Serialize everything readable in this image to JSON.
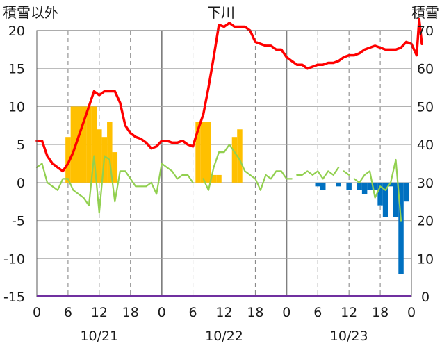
{
  "chart_data": {
    "type": "bar",
    "title": "下川",
    "ylabel_left": "積雪以外",
    "ylabel_right": "積雪",
    "ylim_left": [
      -15,
      20
    ],
    "ylim_right": [
      0,
      70
    ],
    "yticks_left": [
      "-15",
      "-10",
      "-5",
      "0",
      "5",
      "10",
      "15",
      "20"
    ],
    "yticks_right": [
      "0",
      "10",
      "20",
      "30",
      "40",
      "50",
      "60",
      "70"
    ],
    "xlim_hours": [
      0,
      72
    ],
    "xticks": [
      "0",
      "6",
      "12",
      "18",
      "0",
      "6",
      "12",
      "18",
      "0",
      "6",
      "12",
      "18",
      "0"
    ],
    "dates": [
      "10/21",
      "10/22",
      "10/23"
    ],
    "grid": true,
    "colors": {
      "snow_depth": "#ff0000",
      "snowfall": "#ffc000",
      "snowmelt": "#0070c0",
      "temperature": "#92d050",
      "baseline": "#7030a0",
      "grid_major": "#7f7f7f",
      "grid_minor": "#808080"
    },
    "series": [
      {
        "type": "bar",
        "color": "#ffc000",
        "values": [
          [
            6,
            6
          ],
          [
            7,
            10
          ],
          [
            8,
            10
          ],
          [
            9,
            10
          ],
          [
            10,
            10
          ],
          [
            11,
            10
          ],
          [
            12,
            7
          ],
          [
            13,
            6
          ],
          [
            14,
            8
          ],
          [
            15,
            4
          ],
          [
            31,
            8
          ],
          [
            32,
            8
          ],
          [
            33,
            8
          ],
          [
            34,
            1
          ],
          [
            35,
            1
          ],
          [
            38,
            6
          ],
          [
            39,
            7
          ]
        ]
      },
      {
        "type": "bar",
        "color": "#0070c0",
        "values": [
          [
            54,
            -0.5
          ],
          [
            55,
            -1
          ],
          [
            58,
            -0.5
          ],
          [
            60,
            -1
          ],
          [
            62,
            -1
          ],
          [
            63,
            -1.5
          ],
          [
            64,
            -1
          ],
          [
            65,
            -1
          ],
          [
            66,
            -3
          ],
          [
            67,
            -4.5
          ],
          [
            68,
            -0.5
          ],
          [
            69,
            -4.5
          ],
          [
            70,
            -12
          ],
          [
            71,
            -2.5
          ]
        ]
      },
      {
        "type": "line",
        "axis": "right",
        "color": "#ff0000",
        "points": [
          [
            0,
            41
          ],
          [
            1,
            41
          ],
          [
            2,
            37
          ],
          [
            3,
            35
          ],
          [
            4,
            34
          ],
          [
            5,
            33
          ],
          [
            6,
            35
          ],
          [
            7,
            38
          ],
          [
            8,
            42
          ],
          [
            9,
            46
          ],
          [
            10,
            50
          ],
          [
            11,
            54
          ],
          [
            12,
            53
          ],
          [
            13,
            54
          ],
          [
            14,
            54
          ],
          [
            15,
            54
          ],
          [
            16,
            51
          ],
          [
            17,
            45
          ],
          [
            18,
            43
          ],
          [
            19,
            42
          ],
          [
            20,
            41.5
          ],
          [
            21,
            40.5
          ],
          [
            22,
            39
          ],
          [
            23,
            39.5
          ],
          [
            24,
            41
          ],
          [
            25,
            41
          ],
          [
            26,
            40.5
          ],
          [
            27,
            40.5
          ],
          [
            28,
            41
          ],
          [
            29,
            40
          ],
          [
            30,
            39.5
          ],
          [
            31,
            44
          ],
          [
            32,
            48
          ],
          [
            33,
            55
          ],
          [
            34,
            63
          ],
          [
            35,
            71.5
          ],
          [
            36,
            71
          ],
          [
            37,
            72
          ],
          [
            38,
            71
          ],
          [
            39,
            71
          ],
          [
            40,
            71
          ],
          [
            41,
            70
          ],
          [
            42,
            67
          ],
          [
            43,
            66.5
          ],
          [
            44,
            66
          ],
          [
            45,
            66
          ],
          [
            46,
            65
          ],
          [
            47,
            65
          ],
          [
            48,
            63
          ],
          [
            49,
            62
          ],
          [
            50,
            61
          ],
          [
            51,
            61
          ],
          [
            52,
            60
          ],
          [
            53,
            60.5
          ],
          [
            54,
            61
          ],
          [
            55,
            61
          ],
          [
            56,
            61.5
          ],
          [
            57,
            61.5
          ],
          [
            58,
            62
          ],
          [
            59,
            63
          ],
          [
            60,
            63.5
          ],
          [
            61,
            63.5
          ],
          [
            62,
            64
          ],
          [
            63,
            65
          ],
          [
            64,
            65.5
          ],
          [
            65,
            66
          ],
          [
            66,
            65.5
          ],
          [
            67,
            65
          ],
          [
            68,
            65
          ],
          [
            69,
            65
          ],
          [
            70,
            65.5
          ],
          [
            71,
            67
          ],
          [
            72,
            66.5
          ],
          [
            73,
            63.5
          ],
          [
            73.5,
            73
          ],
          [
            74,
            66.5
          ]
        ]
      },
      {
        "type": "line",
        "color": "#92d050",
        "points": [
          [
            0,
            2
          ],
          [
            1,
            2.5
          ],
          [
            2,
            0
          ],
          [
            3,
            -0.5
          ],
          [
            4,
            -1
          ],
          [
            5,
            0.5
          ],
          [
            6,
            0.5
          ],
          [
            7,
            -1
          ],
          [
            8,
            -1.5
          ],
          [
            9,
            -2
          ],
          [
            10,
            -3
          ],
          [
            11,
            3.5
          ],
          [
            12,
            -4
          ],
          [
            13,
            3.5
          ],
          [
            14,
            3
          ],
          [
            15,
            -2.5
          ],
          [
            16,
            1.5
          ],
          [
            17,
            1.5
          ],
          [
            18,
            0.5
          ],
          [
            19,
            -0.5
          ],
          [
            20,
            -0.5
          ],
          [
            21,
            -0.5
          ],
          [
            22,
            0
          ],
          [
            23,
            -1.5
          ],
          [
            24,
            2.5
          ],
          [
            25,
            2
          ],
          [
            26,
            1.5
          ],
          [
            27,
            0.5
          ],
          [
            28,
            1
          ],
          [
            29,
            1
          ],
          [
            30,
            0
          ],
          null,
          [
            32,
            0.5
          ],
          [
            33,
            -1
          ],
          [
            34,
            2
          ],
          [
            35,
            4
          ],
          [
            36,
            4
          ],
          [
            37,
            5
          ],
          [
            38,
            4
          ],
          [
            39,
            3
          ],
          [
            40,
            1.5
          ],
          [
            41,
            1
          ],
          [
            42,
            0.5
          ],
          [
            43,
            -1
          ],
          [
            44,
            1
          ],
          [
            45,
            0.5
          ],
          [
            46,
            1.5
          ],
          [
            47,
            1.5
          ],
          [
            48,
            0.5
          ],
          [
            49,
            0.5
          ],
          null,
          [
            50,
            1
          ],
          [
            51,
            1
          ],
          [
            52,
            1.5
          ],
          [
            53,
            1
          ],
          [
            54,
            1.5
          ],
          [
            55,
            0.5
          ],
          [
            56,
            1.5
          ],
          [
            57,
            1
          ],
          [
            58,
            2
          ],
          null,
          [
            59,
            1.5
          ],
          [
            60,
            1
          ],
          null,
          [
            61,
            0.5
          ],
          [
            62,
            0
          ],
          [
            63,
            1
          ],
          [
            64,
            1.5
          ],
          [
            65,
            -2
          ],
          [
            66,
            -0.5
          ],
          [
            67,
            -1
          ],
          [
            68,
            0
          ],
          [
            69,
            3
          ],
          [
            70,
            -5
          ]
        ]
      }
    ]
  }
}
